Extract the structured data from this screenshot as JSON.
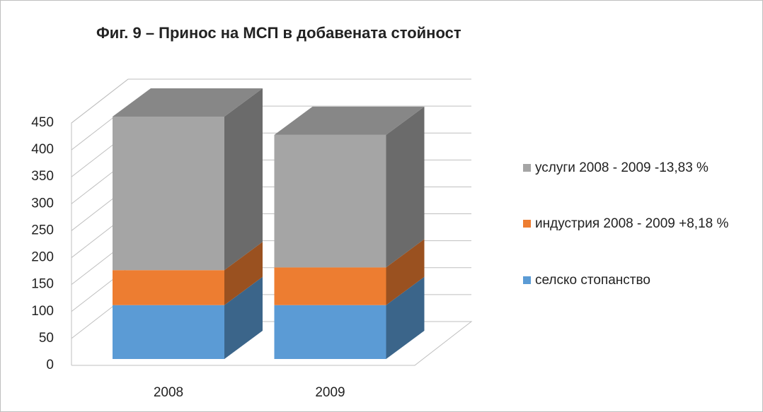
{
  "chart_data": {
    "type": "bar3d_stacked",
    "title": "Фиг. 9 – Принос на МСП в добавената стойност",
    "categories": [
      "2008",
      "2009"
    ],
    "series": [
      {
        "name": "селско стопанство",
        "color": "#5b9bd5",
        "values": [
          100,
          100
        ]
      },
      {
        "name": "индустрия 2008 - 2009 +8,18 %",
        "color": "#ed7d31",
        "values": [
          65,
          70
        ]
      },
      {
        "name": "услуги 2008 - 2009  -13,83 %",
        "color": "#a5a5a5",
        "values": [
          285,
          246
        ]
      }
    ],
    "ylim": [
      0,
      450
    ],
    "yticks": [
      0,
      50,
      100,
      150,
      200,
      250,
      300,
      350,
      400,
      450
    ],
    "grid": true
  }
}
